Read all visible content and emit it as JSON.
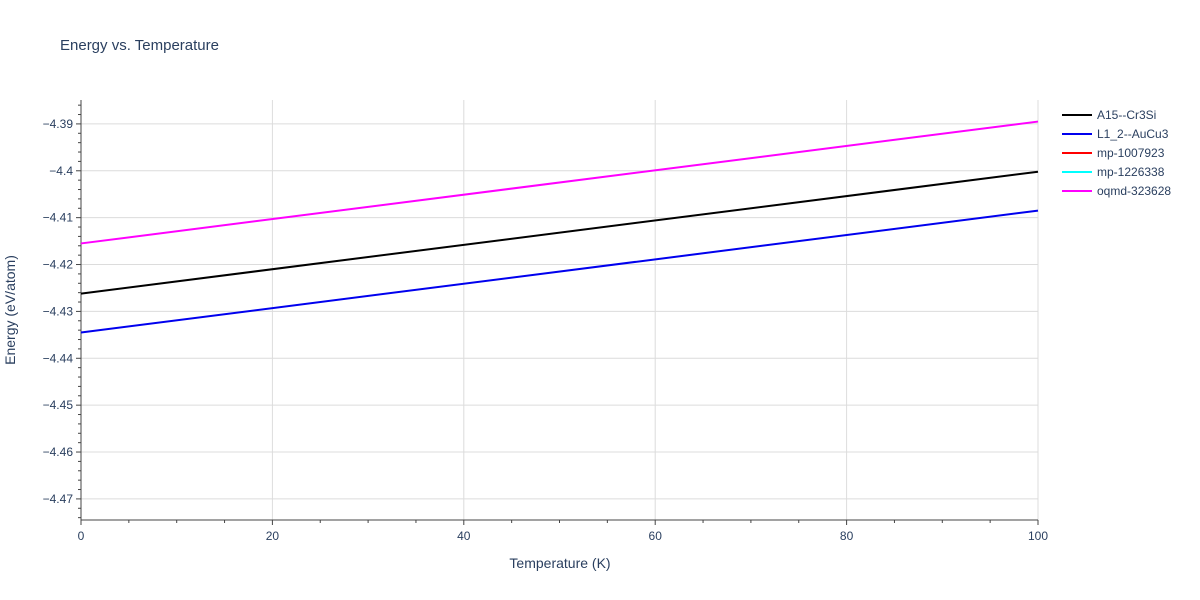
{
  "chart_data": {
    "type": "line",
    "title": "Energy vs. Temperature",
    "xlabel": "Temperature (K)",
    "ylabel": "Energy (eV/atom)",
    "xlim": [
      0,
      100
    ],
    "ylim": [
      -4.4745,
      -4.3849
    ],
    "x_ticks": [
      0,
      20,
      40,
      60,
      80,
      100
    ],
    "y_ticks": [
      -4.39,
      -4.4,
      -4.41,
      -4.42,
      -4.43,
      -4.44,
      -4.45,
      -4.46,
      -4.47
    ],
    "x_tick_labels": [
      "0",
      "20",
      "40",
      "60",
      "80",
      "100"
    ],
    "y_tick_labels": [
      "−4.39",
      "−4.4",
      "−4.41",
      "−4.42",
      "−4.43",
      "−4.44",
      "−4.45",
      "−4.46",
      "−4.47"
    ],
    "grid": true,
    "legend_position": "right",
    "series": [
      {
        "name": "A15--Cr3Si",
        "color": "#000000",
        "x": [
          0,
          100
        ],
        "y": [
          -4.4262,
          -4.4002
        ]
      },
      {
        "name": "L1_2--AuCu3",
        "color": "#0000ee",
        "x": [
          0,
          100
        ],
        "y": [
          -4.4345,
          -4.4085
        ]
      },
      {
        "name": "mp-1007923",
        "color": "#ff0000",
        "x": [],
        "y": []
      },
      {
        "name": "mp-1226338",
        "color": "#00ffff",
        "x": [],
        "y": []
      },
      {
        "name": "oqmd-323628",
        "color": "#ff00ff",
        "x": [
          0,
          100
        ],
        "y": [
          -4.4155,
          -4.3895
        ]
      }
    ]
  }
}
